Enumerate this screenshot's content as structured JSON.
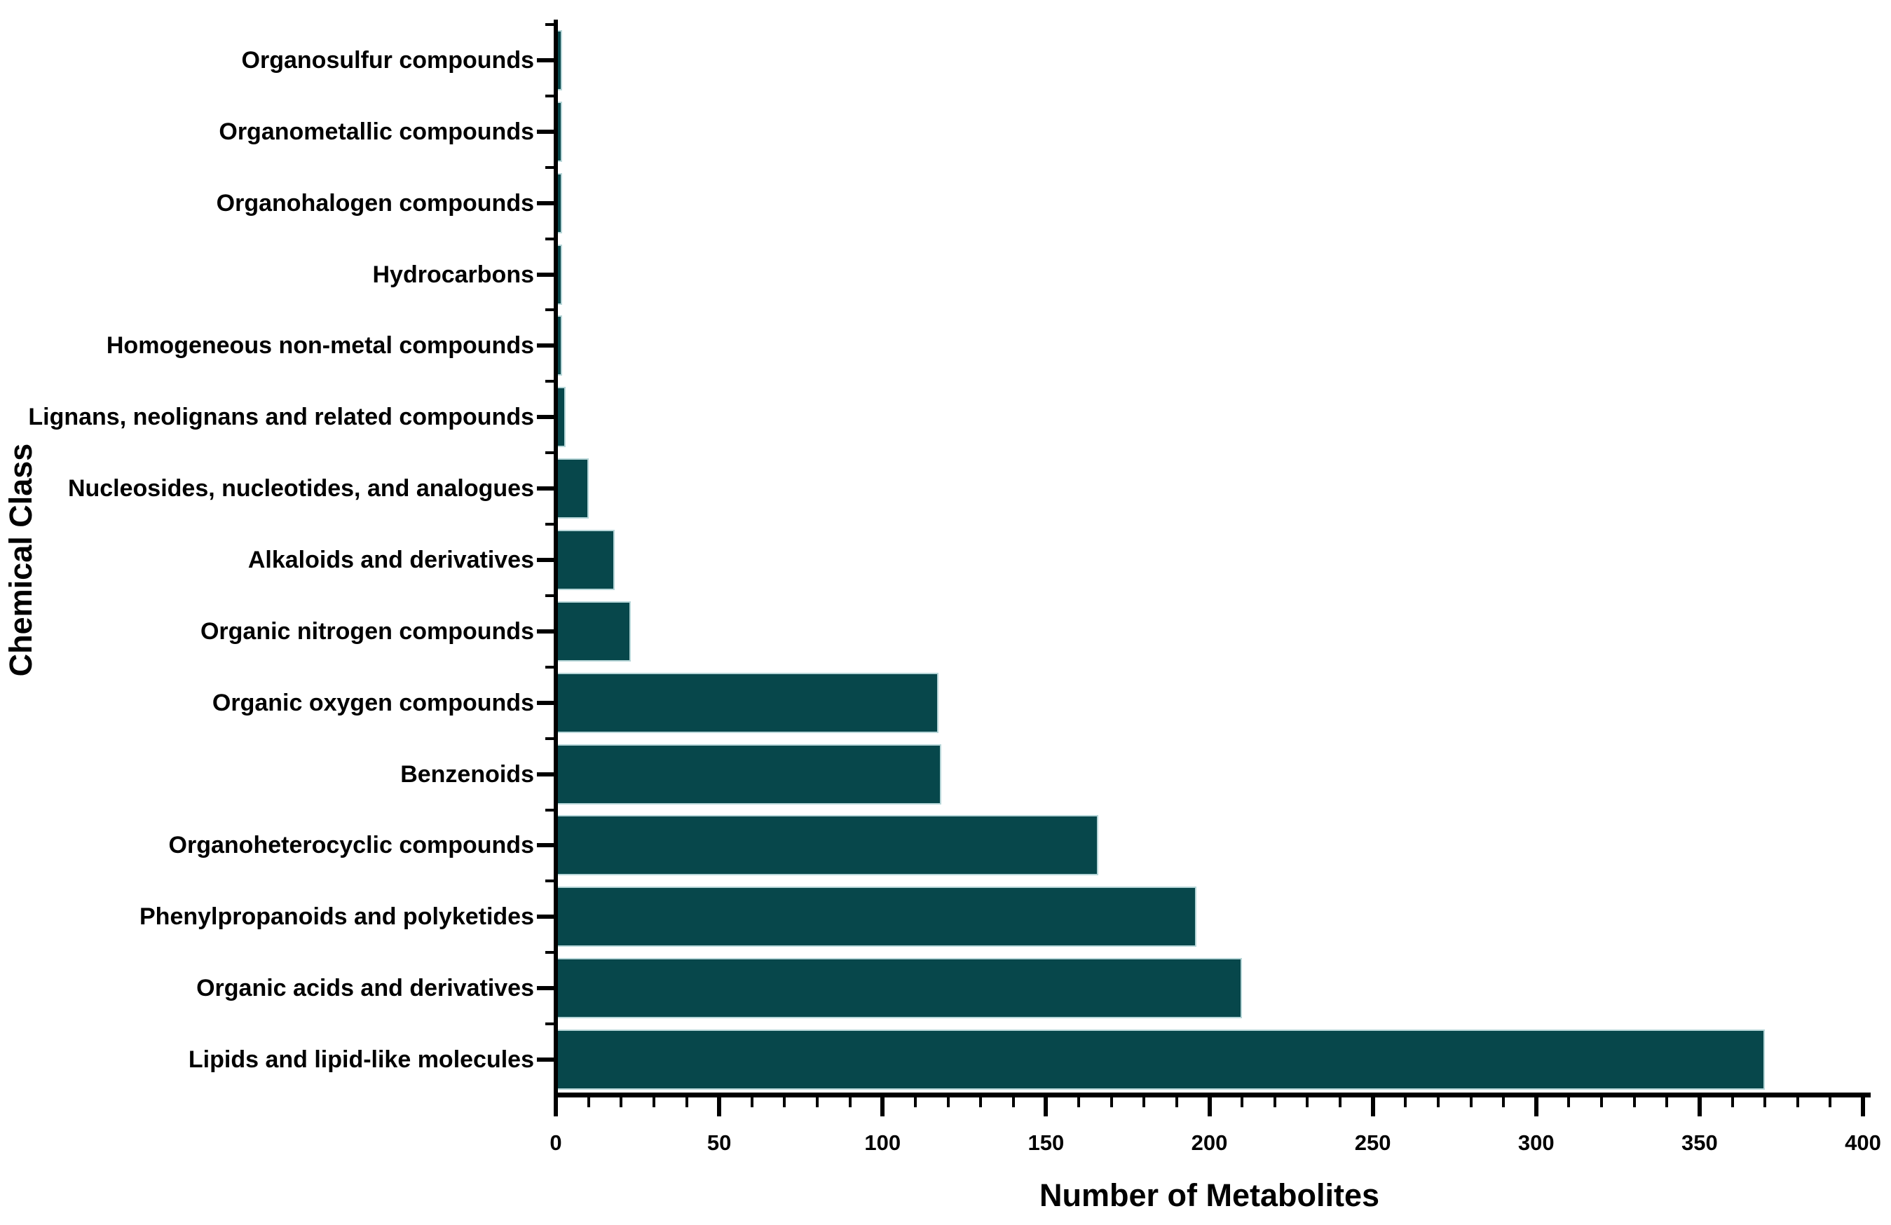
{
  "chart_data": {
    "type": "bar",
    "orientation": "horizontal",
    "title": "",
    "xlabel": "Number of Metabolites",
    "ylabel": "Chemical Class",
    "categories": [
      "Organosulfur compounds",
      "Organometallic compounds",
      "Organohalogen compounds",
      "Hydrocarbons",
      "Homogeneous non-metal compounds",
      "Lignans, neolignans and related compounds",
      "Nucleosides, nucleotides, and analogues",
      "Alkaloids and derivatives",
      "Organic nitrogen compounds",
      "Organic oxygen compounds",
      "Benzenoids",
      "Organoheterocyclic compounds",
      "Phenylpropanoids and polyketides",
      "Organic acids and derivatives",
      "Lipids and lipid-like molecules"
    ],
    "values": [
      2,
      2,
      2,
      2,
      2,
      3,
      10,
      18,
      23,
      117,
      118,
      166,
      196,
      210,
      370
    ],
    "xlim": [
      0,
      400
    ],
    "xticks": [
      0,
      50,
      100,
      150,
      200,
      250,
      300,
      350,
      400
    ],
    "xtick_minor_step": 10,
    "grid": false,
    "legend": "none",
    "colors": {
      "bar_fill": "#07474b",
      "bar_edge": "#b7d6d8",
      "axis": "#000000",
      "text": "#000000",
      "background": "#ffffff"
    }
  }
}
